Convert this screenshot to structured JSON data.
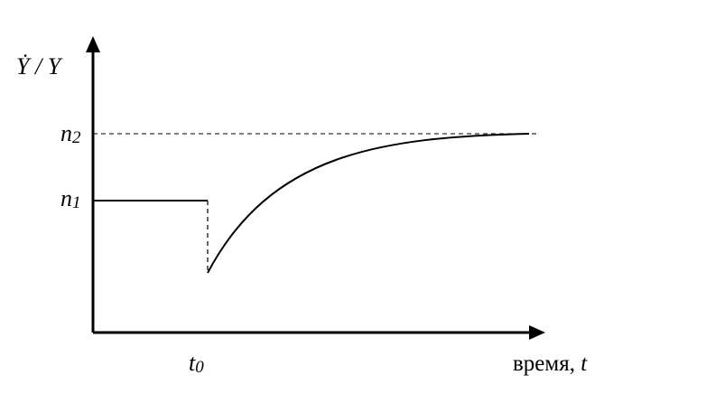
{
  "diagram": {
    "y_axis": {
      "label_prefix": "Ẏ",
      "label_sep": " / ",
      "label_suffix": "Y"
    },
    "x_axis": {
      "label_word": "время, ",
      "label_var": "t"
    },
    "levels": {
      "n1": {
        "base": "n",
        "sub": "1"
      },
      "n2": {
        "base": "n",
        "sub": "2"
      }
    },
    "shock_time": {
      "base": "t",
      "sub": "0"
    },
    "colors": {
      "line": "#000000",
      "background": "#ffffff"
    }
  }
}
